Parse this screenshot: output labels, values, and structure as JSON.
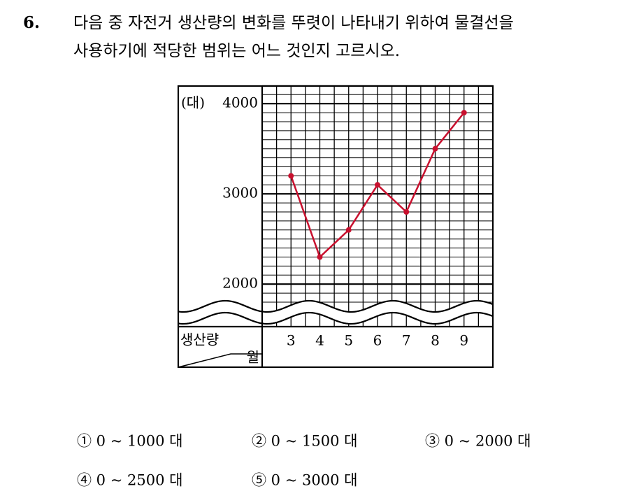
{
  "question": {
    "number": "6.",
    "lines": [
      "다음 중 자전거 생산량의 변화를 뚜렷이 나타내기 위하여 물결선을",
      "사용하기에 적당한 범위는 어느 것인지 고르시오."
    ]
  },
  "chart": {
    "unit": "(대)",
    "row_label": "생산량",
    "col_label": "월",
    "categories": [
      "3",
      "4",
      "5",
      "6",
      "7",
      "8",
      "9"
    ],
    "values": [
      3200,
      2300,
      2600,
      3100,
      2800,
      3500,
      3900
    ],
    "color": "#c8102e",
    "ylim": [
      1800,
      4200
    ],
    "yticks": [
      2000,
      3000,
      4000
    ]
  },
  "options": [
    "① 0 ~ 1000 대",
    "② 0 ~ 1500 대",
    "③ 0 ~ 2000 대",
    "④ 0 ~ 2500 대",
    "⑤ 0 ~ 3000 대"
  ]
}
